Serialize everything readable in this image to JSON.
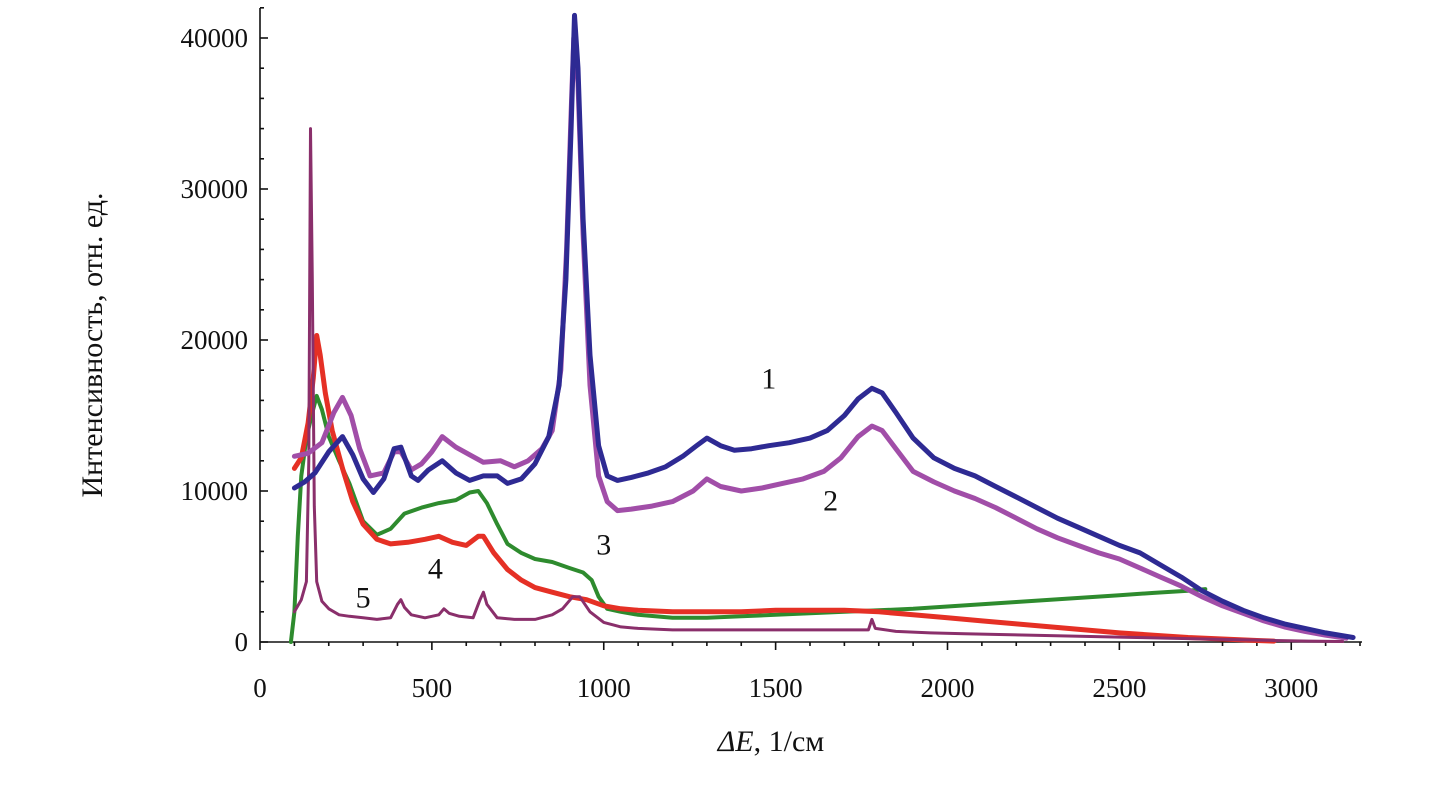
{
  "chart_data": {
    "type": "line",
    "title": "",
    "xlabel_symbol": "ΔE",
    "xlabel_unit": ", 1/см",
    "ylabel": "Интенсивность, отн. ед.",
    "xlim": [
      0,
      3200
    ],
    "ylim": [
      0,
      42000
    ],
    "xticks": [
      0,
      500,
      1000,
      1500,
      2000,
      2500,
      3000
    ],
    "xtick_labels": [
      "0",
      "500",
      "1000",
      "1500",
      "2000",
      "2500",
      "3000"
    ],
    "yticks": [
      0,
      10000,
      20000,
      30000,
      40000
    ],
    "ytick_labels": [
      "0",
      "10000",
      "20000",
      "30000",
      "40000"
    ],
    "grid": false,
    "legend": "none",
    "series": [
      {
        "label": "1",
        "label_at": [
          1480,
          16800
        ],
        "color": "#2e2a93",
        "width": 5,
        "points": [
          [
            100,
            10200
          ],
          [
            130,
            10600
          ],
          [
            160,
            11200
          ],
          [
            200,
            12600
          ],
          [
            240,
            13600
          ],
          [
            270,
            12400
          ],
          [
            300,
            10800
          ],
          [
            330,
            9900
          ],
          [
            360,
            10800
          ],
          [
            390,
            12800
          ],
          [
            410,
            12900
          ],
          [
            440,
            11000
          ],
          [
            460,
            10700
          ],
          [
            490,
            11400
          ],
          [
            530,
            12000
          ],
          [
            570,
            11200
          ],
          [
            610,
            10700
          ],
          [
            650,
            11000
          ],
          [
            690,
            11000
          ],
          [
            720,
            10500
          ],
          [
            760,
            10800
          ],
          [
            800,
            11800
          ],
          [
            840,
            13600
          ],
          [
            870,
            17000
          ],
          [
            890,
            24000
          ],
          [
            905,
            34000
          ],
          [
            915,
            41500
          ],
          [
            925,
            38000
          ],
          [
            940,
            28000
          ],
          [
            960,
            19000
          ],
          [
            985,
            13000
          ],
          [
            1010,
            11000
          ],
          [
            1040,
            10700
          ],
          [
            1080,
            10900
          ],
          [
            1130,
            11200
          ],
          [
            1180,
            11600
          ],
          [
            1230,
            12300
          ],
          [
            1270,
            13000
          ],
          [
            1300,
            13500
          ],
          [
            1340,
            13000
          ],
          [
            1380,
            12700
          ],
          [
            1430,
            12800
          ],
          [
            1480,
            13000
          ],
          [
            1540,
            13200
          ],
          [
            1600,
            13500
          ],
          [
            1650,
            14000
          ],
          [
            1700,
            15000
          ],
          [
            1740,
            16100
          ],
          [
            1780,
            16800
          ],
          [
            1810,
            16500
          ],
          [
            1850,
            15200
          ],
          [
            1900,
            13500
          ],
          [
            1960,
            12200
          ],
          [
            2020,
            11500
          ],
          [
            2080,
            11000
          ],
          [
            2140,
            10300
          ],
          [
            2200,
            9600
          ],
          [
            2260,
            8900
          ],
          [
            2320,
            8200
          ],
          [
            2380,
            7600
          ],
          [
            2440,
            7000
          ],
          [
            2500,
            6400
          ],
          [
            2560,
            5900
          ],
          [
            2620,
            5100
          ],
          [
            2680,
            4300
          ],
          [
            2740,
            3400
          ],
          [
            2800,
            2700
          ],
          [
            2860,
            2100
          ],
          [
            2920,
            1600
          ],
          [
            2980,
            1200
          ],
          [
            3040,
            900
          ],
          [
            3100,
            600
          ],
          [
            3180,
            300
          ]
        ]
      },
      {
        "label": "2",
        "label_at": [
          1660,
          8700
        ],
        "color": "#a14ea8",
        "width": 5,
        "points": [
          [
            100,
            12300
          ],
          [
            140,
            12500
          ],
          [
            180,
            13200
          ],
          [
            215,
            15200
          ],
          [
            240,
            16200
          ],
          [
            265,
            15000
          ],
          [
            290,
            12800
          ],
          [
            320,
            11000
          ],
          [
            360,
            11200
          ],
          [
            390,
            12600
          ],
          [
            410,
            12600
          ],
          [
            440,
            11400
          ],
          [
            470,
            11800
          ],
          [
            500,
            12600
          ],
          [
            530,
            13600
          ],
          [
            570,
            12900
          ],
          [
            610,
            12400
          ],
          [
            650,
            11900
          ],
          [
            700,
            12000
          ],
          [
            740,
            11600
          ],
          [
            780,
            12000
          ],
          [
            820,
            12800
          ],
          [
            850,
            14000
          ],
          [
            875,
            18000
          ],
          [
            892,
            26000
          ],
          [
            905,
            35000
          ],
          [
            913,
            40000
          ],
          [
            925,
            37000
          ],
          [
            940,
            27000
          ],
          [
            960,
            17000
          ],
          [
            985,
            11000
          ],
          [
            1010,
            9300
          ],
          [
            1040,
            8700
          ],
          [
            1080,
            8800
          ],
          [
            1140,
            9000
          ],
          [
            1200,
            9300
          ],
          [
            1260,
            10000
          ],
          [
            1300,
            10800
          ],
          [
            1340,
            10300
          ],
          [
            1400,
            10000
          ],
          [
            1460,
            10200
          ],
          [
            1520,
            10500
          ],
          [
            1580,
            10800
          ],
          [
            1640,
            11300
          ],
          [
            1690,
            12200
          ],
          [
            1740,
            13600
          ],
          [
            1780,
            14300
          ],
          [
            1810,
            14000
          ],
          [
            1850,
            12800
          ],
          [
            1900,
            11300
          ],
          [
            1960,
            10600
          ],
          [
            2020,
            10000
          ],
          [
            2080,
            9500
          ],
          [
            2140,
            8900
          ],
          [
            2200,
            8200
          ],
          [
            2260,
            7500
          ],
          [
            2320,
            6900
          ],
          [
            2380,
            6400
          ],
          [
            2440,
            5900
          ],
          [
            2500,
            5500
          ],
          [
            2560,
            4900
          ],
          [
            2620,
            4300
          ],
          [
            2680,
            3700
          ],
          [
            2740,
            3000
          ],
          [
            2800,
            2400
          ],
          [
            2860,
            1900
          ],
          [
            2920,
            1400
          ],
          [
            2980,
            1000
          ],
          [
            3040,
            700
          ],
          [
            3100,
            450
          ],
          [
            3160,
            250
          ]
        ]
      },
      {
        "label": "3",
        "label_at": [
          1000,
          5800
        ],
        "color": "#2e8b2e",
        "width": 4,
        "points": [
          [
            90,
            0
          ],
          [
            100,
            2000
          ],
          [
            110,
            7000
          ],
          [
            120,
            11000
          ],
          [
            135,
            13500
          ],
          [
            150,
            15000
          ],
          [
            165,
            16300
          ],
          [
            180,
            15400
          ],
          [
            200,
            13600
          ],
          [
            230,
            12000
          ],
          [
            260,
            10500
          ],
          [
            300,
            8000
          ],
          [
            340,
            7100
          ],
          [
            380,
            7500
          ],
          [
            420,
            8500
          ],
          [
            470,
            8900
          ],
          [
            520,
            9200
          ],
          [
            570,
            9400
          ],
          [
            610,
            9900
          ],
          [
            635,
            10000
          ],
          [
            660,
            9200
          ],
          [
            690,
            7800
          ],
          [
            720,
            6500
          ],
          [
            760,
            5900
          ],
          [
            800,
            5500
          ],
          [
            850,
            5300
          ],
          [
            900,
            4900
          ],
          [
            940,
            4600
          ],
          [
            965,
            4100
          ],
          [
            985,
            3000
          ],
          [
            1010,
            2200
          ],
          [
            1050,
            2000
          ],
          [
            1100,
            1800
          ],
          [
            1200,
            1600
          ],
          [
            1300,
            1600
          ],
          [
            1400,
            1700
          ],
          [
            1500,
            1800
          ],
          [
            1600,
            1900
          ],
          [
            1700,
            2000
          ],
          [
            1800,
            2100
          ],
          [
            1900,
            2200
          ],
          [
            2000,
            2350
          ],
          [
            2100,
            2500
          ],
          [
            2200,
            2650
          ],
          [
            2300,
            2800
          ],
          [
            2400,
            2950
          ],
          [
            2500,
            3100
          ],
          [
            2600,
            3250
          ],
          [
            2700,
            3400
          ],
          [
            2750,
            3500
          ]
        ]
      },
      {
        "label": "4",
        "label_at": [
          510,
          4200
        ],
        "color": "#e53025",
        "width": 5,
        "points": [
          [
            100,
            11500
          ],
          [
            120,
            12200
          ],
          [
            140,
            14500
          ],
          [
            155,
            17500
          ],
          [
            165,
            20300
          ],
          [
            175,
            19000
          ],
          [
            190,
            16500
          ],
          [
            210,
            14000
          ],
          [
            240,
            11500
          ],
          [
            270,
            9300
          ],
          [
            300,
            7800
          ],
          [
            340,
            6800
          ],
          [
            380,
            6500
          ],
          [
            430,
            6600
          ],
          [
            480,
            6800
          ],
          [
            520,
            7000
          ],
          [
            560,
            6600
          ],
          [
            600,
            6400
          ],
          [
            635,
            7000
          ],
          [
            650,
            7000
          ],
          [
            680,
            5900
          ],
          [
            720,
            4800
          ],
          [
            760,
            4100
          ],
          [
            800,
            3600
          ],
          [
            850,
            3300
          ],
          [
            900,
            3000
          ],
          [
            950,
            2800
          ],
          [
            1000,
            2400
          ],
          [
            1050,
            2200
          ],
          [
            1100,
            2100
          ],
          [
            1200,
            2000
          ],
          [
            1300,
            2000
          ],
          [
            1400,
            2000
          ],
          [
            1500,
            2100
          ],
          [
            1600,
            2100
          ],
          [
            1700,
            2100
          ],
          [
            1800,
            2000
          ],
          [
            1900,
            1800
          ],
          [
            2000,
            1600
          ],
          [
            2100,
            1400
          ],
          [
            2200,
            1200
          ],
          [
            2300,
            1000
          ],
          [
            2400,
            800
          ],
          [
            2500,
            600
          ],
          [
            2600,
            450
          ],
          [
            2700,
            300
          ],
          [
            2800,
            200
          ],
          [
            2900,
            100
          ],
          [
            2950,
            60
          ]
        ]
      },
      {
        "label": "5",
        "label_at": [
          300,
          2300
        ],
        "color": "#8a2f6b",
        "width": 3,
        "points": [
          [
            100,
            2000
          ],
          [
            120,
            2800
          ],
          [
            135,
            4000
          ],
          [
            142,
            12000
          ],
          [
            147,
            34000
          ],
          [
            152,
            24000
          ],
          [
            158,
            9000
          ],
          [
            165,
            4000
          ],
          [
            180,
            2700
          ],
          [
            200,
            2200
          ],
          [
            230,
            1800
          ],
          [
            260,
            1700
          ],
          [
            300,
            1600
          ],
          [
            340,
            1500
          ],
          [
            380,
            1600
          ],
          [
            400,
            2500
          ],
          [
            410,
            2800
          ],
          [
            420,
            2300
          ],
          [
            440,
            1800
          ],
          [
            480,
            1600
          ],
          [
            520,
            1800
          ],
          [
            535,
            2200
          ],
          [
            550,
            1900
          ],
          [
            580,
            1700
          ],
          [
            620,
            1600
          ],
          [
            640,
            2800
          ],
          [
            650,
            3300
          ],
          [
            660,
            2500
          ],
          [
            690,
            1600
          ],
          [
            740,
            1500
          ],
          [
            800,
            1500
          ],
          [
            850,
            1800
          ],
          [
            880,
            2200
          ],
          [
            910,
            3000
          ],
          [
            930,
            3000
          ],
          [
            960,
            2000
          ],
          [
            1000,
            1300
          ],
          [
            1050,
            1000
          ],
          [
            1100,
            900
          ],
          [
            1200,
            800
          ],
          [
            1300,
            800
          ],
          [
            1400,
            800
          ],
          [
            1500,
            800
          ],
          [
            1600,
            800
          ],
          [
            1700,
            800
          ],
          [
            1770,
            800
          ],
          [
            1780,
            1500
          ],
          [
            1790,
            900
          ],
          [
            1850,
            700
          ],
          [
            1950,
            600
          ],
          [
            2050,
            550
          ],
          [
            2150,
            500
          ],
          [
            2250,
            450
          ],
          [
            2350,
            400
          ],
          [
            2450,
            350
          ],
          [
            2550,
            300
          ],
          [
            2650,
            250
          ],
          [
            2750,
            200
          ],
          [
            2850,
            150
          ],
          [
            2950,
            100
          ],
          [
            3050,
            60
          ],
          [
            3150,
            30
          ]
        ]
      }
    ]
  }
}
